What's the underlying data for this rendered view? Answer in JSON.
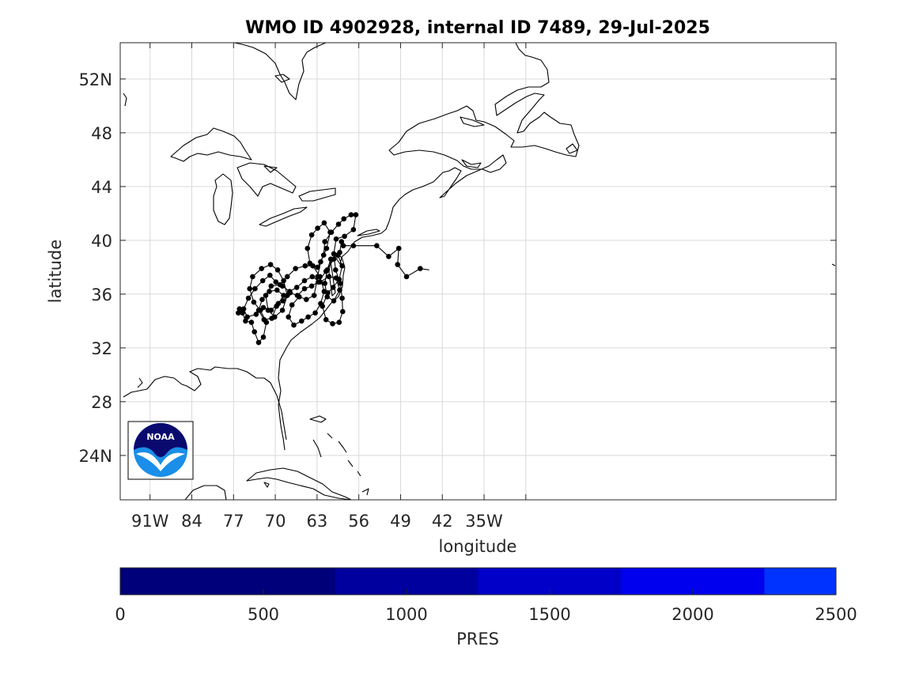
{
  "title": "WMO ID 4902928, internal ID 7489, 29-Jul-2025",
  "map": {
    "xlabel": "longitude",
    "ylabel": "latitude",
    "lon_range": [
      -96,
      24
    ],
    "lat_range": [
      20.7,
      54.7
    ],
    "x_ticks": [
      {
        "lon": -91,
        "label": "91W"
      },
      {
        "lon": -84,
        "label": "84"
      },
      {
        "lon": -77,
        "label": "77"
      },
      {
        "lon": -70,
        "label": "70"
      },
      {
        "lon": -63,
        "label": "63"
      },
      {
        "lon": -56,
        "label": "56"
      },
      {
        "lon": -49,
        "label": "49"
      },
      {
        "lon": -42,
        "label": "42"
      },
      {
        "lon": -35,
        "label": "35W"
      }
    ],
    "y_ticks": [
      {
        "lat": 24,
        "label": "24N"
      },
      {
        "lat": 28,
        "label": "28"
      },
      {
        "lat": 32,
        "label": "32"
      },
      {
        "lat": 36,
        "label": "36"
      },
      {
        "lat": 40,
        "label": "40"
      },
      {
        "lat": 44,
        "label": "44"
      },
      {
        "lat": 48,
        "label": "48"
      },
      {
        "lat": 52,
        "label": "52N"
      }
    ],
    "grid": true,
    "logo_text": "NOAA"
  },
  "colorbar": {
    "label": "PRES",
    "ticks": [
      "0",
      "500",
      "1000",
      "1500",
      "2000",
      "2500"
    ],
    "range": [
      0,
      2500
    ],
    "segments": [
      {
        "from": 0,
        "to": 750,
        "color": "#00007a"
      },
      {
        "from": 750,
        "to": 1250,
        "color": "#00009e"
      },
      {
        "from": 1250,
        "to": 1750,
        "color": "#0000c8"
      },
      {
        "from": 1750,
        "to": 2250,
        "color": "#0000ee"
      },
      {
        "from": 2250,
        "to": 2500,
        "color": "#0033ff"
      }
    ]
  },
  "chart_data": {
    "type": "scatter",
    "title": "WMO ID 4902928, internal ID 7489, 29-Jul-2025",
    "xlabel": "longitude",
    "ylabel": "latitude",
    "xlim": [
      -96,
      24
    ],
    "ylim": [
      20.7,
      54.7
    ],
    "series": [
      {
        "name": "",
        "connected": true,
        "points": [
          [
            -76.2,
            34.6
          ],
          [
            -76.0,
            34.9
          ],
          [
            -75.5,
            34.6
          ],
          [
            -75.0,
            34.0
          ],
          [
            -74.0,
            33.9
          ],
          [
            -73.5,
            33.2
          ],
          [
            -72.8,
            32.4
          ],
          [
            -72.0,
            32.8
          ],
          [
            -71.5,
            33.9
          ],
          [
            -72.5,
            34.8
          ],
          [
            -73.6,
            35.4
          ],
          [
            -74.3,
            36.4
          ],
          [
            -73.8,
            37.3
          ],
          [
            -72.3,
            37.9
          ],
          [
            -70.8,
            38.2
          ],
          [
            -69.6,
            37.8
          ],
          [
            -68.6,
            37.0
          ],
          [
            -68.0,
            35.9
          ],
          [
            -68.8,
            34.8
          ],
          [
            -70.1,
            34.3
          ],
          [
            -71.2,
            34.8
          ],
          [
            -71.6,
            35.9
          ],
          [
            -70.7,
            36.6
          ],
          [
            -69.2,
            36.7
          ],
          [
            -68.0,
            37.3
          ],
          [
            -66.6,
            37.9
          ],
          [
            -65.0,
            38.1
          ],
          [
            -63.7,
            38.1
          ],
          [
            -62.5,
            37.3
          ],
          [
            -61.8,
            36.2
          ],
          [
            -62.4,
            35.3
          ],
          [
            -63.3,
            34.6
          ],
          [
            -64.5,
            34.3
          ],
          [
            -65.6,
            34.0
          ],
          [
            -66.9,
            33.7
          ],
          [
            -67.8,
            34.3
          ],
          [
            -67.2,
            35.2
          ],
          [
            -66.0,
            35.8
          ],
          [
            -64.8,
            35.6
          ],
          [
            -63.5,
            35.9
          ],
          [
            -62.9,
            37.3
          ],
          [
            -62.4,
            38.4
          ],
          [
            -61.4,
            39.4
          ],
          [
            -60.8,
            40.6
          ],
          [
            -61.8,
            41.3
          ],
          [
            -62.9,
            40.9
          ],
          [
            -63.9,
            40.4
          ],
          [
            -64.6,
            39.4
          ],
          [
            -64.2,
            38.3
          ],
          [
            -62.9,
            38.0
          ],
          [
            -61.9,
            38.9
          ],
          [
            -61.7,
            39.9
          ],
          [
            -60.6,
            40.6
          ],
          [
            -59.4,
            41.2
          ],
          [
            -58.5,
            41.6
          ],
          [
            -57.3,
            41.9
          ],
          [
            -56.5,
            41.9
          ],
          [
            -56.9,
            40.8
          ],
          [
            -58.4,
            40.3
          ],
          [
            -59.8,
            40.1
          ],
          [
            -60.2,
            39.0
          ],
          [
            -59.9,
            37.8
          ],
          [
            -59.1,
            36.8
          ],
          [
            -58.8,
            35.7
          ],
          [
            -58.7,
            34.7
          ],
          [
            -59.3,
            33.9
          ],
          [
            -60.4,
            33.8
          ],
          [
            -61.5,
            34.1
          ],
          [
            -62.1,
            35.1
          ],
          [
            -61.2,
            36.1
          ],
          [
            -60.3,
            36.5
          ],
          [
            -59.3,
            37.1
          ],
          [
            -58.8,
            38.1
          ],
          [
            -59.5,
            38.9
          ],
          [
            -60.7,
            38.6
          ],
          [
            -61.3,
            37.8
          ],
          [
            -61.7,
            36.8
          ],
          [
            -61.3,
            35.8
          ],
          [
            -60.2,
            35.5
          ],
          [
            -59.2,
            36.3
          ],
          [
            -59.8,
            37.2
          ],
          [
            -61.0,
            37.3
          ],
          [
            -62.5,
            36.9
          ],
          [
            -63.8,
            37.3
          ],
          [
            -65.1,
            37.0
          ],
          [
            -66.4,
            36.5
          ],
          [
            -67.6,
            36.2
          ],
          [
            -68.8,
            36.6
          ],
          [
            -69.9,
            36.9
          ],
          [
            -70.9,
            37.4
          ],
          [
            -72.1,
            37.0
          ],
          [
            -73.4,
            36.4
          ],
          [
            -74.5,
            35.7
          ],
          [
            -75.3,
            34.9
          ],
          [
            -74.7,
            34.3
          ],
          [
            -73.2,
            34.5
          ],
          [
            -72.0,
            35.0
          ],
          [
            -70.7,
            34.8
          ],
          [
            -69.5,
            35.3
          ],
          [
            -68.6,
            35.9
          ],
          [
            -69.7,
            36.3
          ],
          [
            -71.0,
            36.2
          ],
          [
            -72.2,
            35.6
          ],
          [
            -72.8,
            34.8
          ],
          [
            -71.9,
            34.1
          ],
          [
            -70.6,
            34.2
          ],
          [
            -69.8,
            35.1
          ],
          [
            -68.7,
            35.5
          ],
          [
            -67.5,
            36.1
          ],
          [
            -66.3,
            35.9
          ],
          [
            -65.1,
            36.4
          ],
          [
            -63.9,
            36.6
          ],
          [
            -62.8,
            36.9
          ],
          [
            -61.5,
            37.7
          ],
          [
            -60.2,
            38.6
          ],
          [
            -59.2,
            39.1
          ],
          [
            -58.9,
            39.9
          ],
          [
            -58.6,
            39.6
          ],
          [
            -56.9,
            39.6
          ],
          [
            -53.0,
            39.6
          ],
          [
            -51.0,
            38.8
          ],
          [
            -49.3,
            39.4
          ],
          [
            -49.5,
            38.2
          ],
          [
            -48.0,
            37.3
          ],
          [
            -45.7,
            37.9
          ],
          [
            -44.2,
            37.8
          ]
        ]
      }
    ]
  }
}
